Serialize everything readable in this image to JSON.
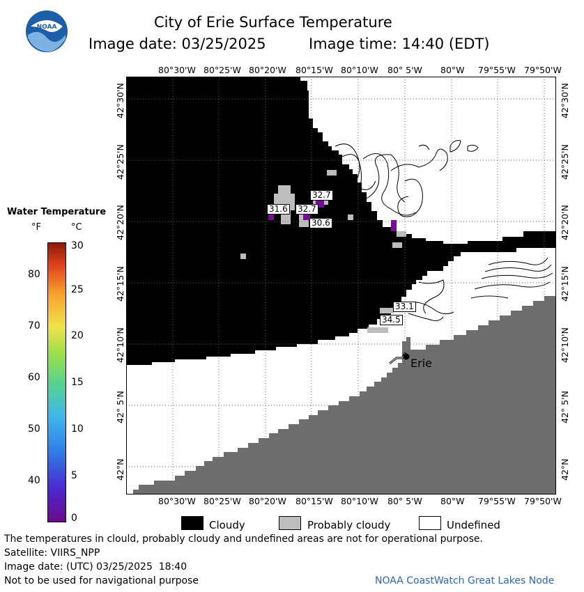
{
  "header": {
    "title": "City of Erie Surface Temperature",
    "image_date": "Image date: 03/25/2025",
    "image_time": "Image time: 14:40 (EDT)"
  },
  "logo": {
    "text": "NOAA"
  },
  "colorbar": {
    "title": "Water Temperature",
    "unit_f": "°F",
    "unit_c": "°C",
    "f_ticks": [
      "80",
      "70",
      "60",
      "50",
      "40"
    ],
    "c_ticks": [
      "30",
      "25",
      "20",
      "15",
      "10",
      "5",
      "0"
    ]
  },
  "map": {
    "lon_labels": [
      "80°30'W",
      "80°25'W",
      "80°20'W",
      "80°15'W",
      "80°10'W",
      "80° 5'W",
      "80°W",
      "79°55'W",
      "79°50'W"
    ],
    "lat_labels": [
      "42°30'N",
      "42°25'N",
      "42°20'N",
      "42°15'N",
      "42°10'N",
      "42° 5'N",
      "42°N"
    ],
    "city": "Erie",
    "temperature_labels": [
      "32.7",
      "31.6",
      "32.7",
      "30.6",
      "33.1",
      "34.5"
    ]
  },
  "legend": {
    "cloudy": "Cloudy",
    "probably_cloudy": "Probably cloudy",
    "undefined": "Undefined"
  },
  "footer": {
    "note": "The temperatures in clould, probably cloudy and undefined areas are not for operational purpose.",
    "satellite": "Satellite: VIIRS_NPP",
    "utc_date": "Image date: (UTC) 03/25/2025  18:40",
    "nav_warning": "Not to be used for navigational purpose",
    "credit": "NOAA CoastWatch Great Lakes Node"
  },
  "colors": {
    "cloudy": "#000000",
    "probably_cloudy": "#bdbdbd",
    "land": "#6e6e6e",
    "undefined": "#ffffff",
    "cold_pixel": "#7a0a9a",
    "credit": "#2e66b8"
  }
}
